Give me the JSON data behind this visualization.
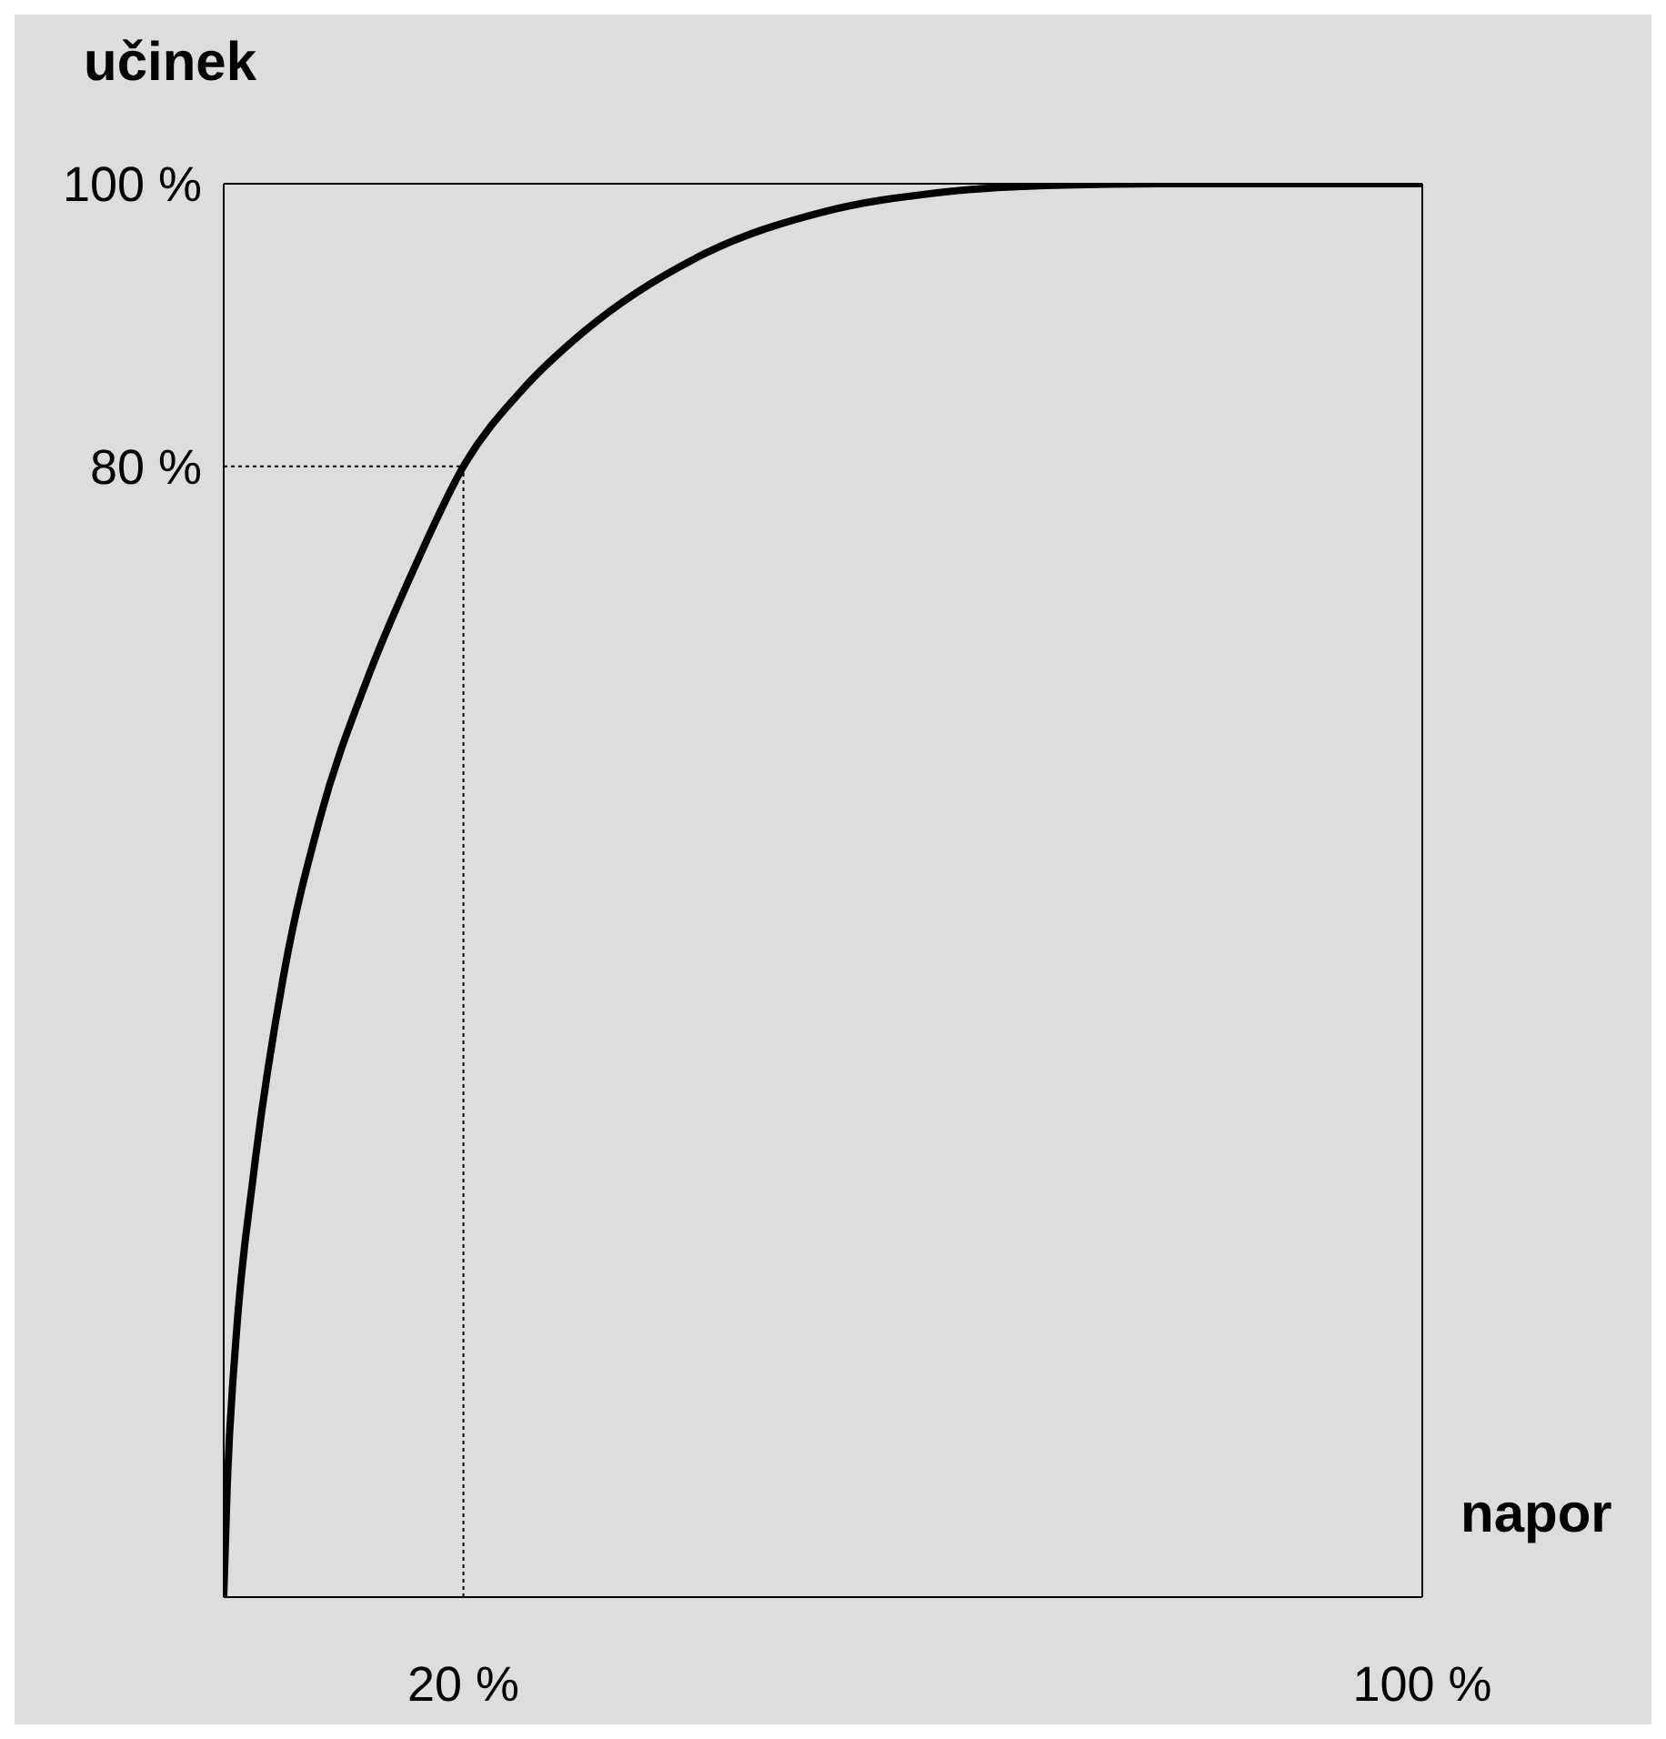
{
  "chart_data": {
    "type": "line",
    "ylabel": "učinek",
    "xlabel": "napor",
    "x": [
      0,
      0.3,
      1,
      2.5,
      5,
      8,
      12,
      16,
      20,
      25,
      30,
      40,
      50,
      60,
      70,
      80,
      100
    ],
    "series": [
      {
        "color": "#000000",
        "values": [
          0,
          8,
          18,
          30,
          44,
          55,
          65,
          73,
          80,
          85.5,
          89.5,
          95,
          98,
          99.4,
          99.9,
          100,
          100
        ]
      }
    ],
    "xlim": [
      0,
      100
    ],
    "xticks": [
      {
        "value": 20,
        "label": "20 %"
      },
      {
        "value": 100,
        "label": "100 %"
      }
    ],
    "ylim": [
      0,
      100
    ],
    "yticks": [
      {
        "value": 80,
        "label": "80 %"
      },
      {
        "value": 100,
        "label": "100 %"
      }
    ],
    "ref_lines": [
      {
        "axis": "x",
        "value": 20,
        "line_style": "dotted"
      },
      {
        "axis": "y",
        "value": 80,
        "line_style": "dotted"
      }
    ],
    "grid": false,
    "legend": false,
    "marker": "none",
    "line_style": "solid"
  }
}
